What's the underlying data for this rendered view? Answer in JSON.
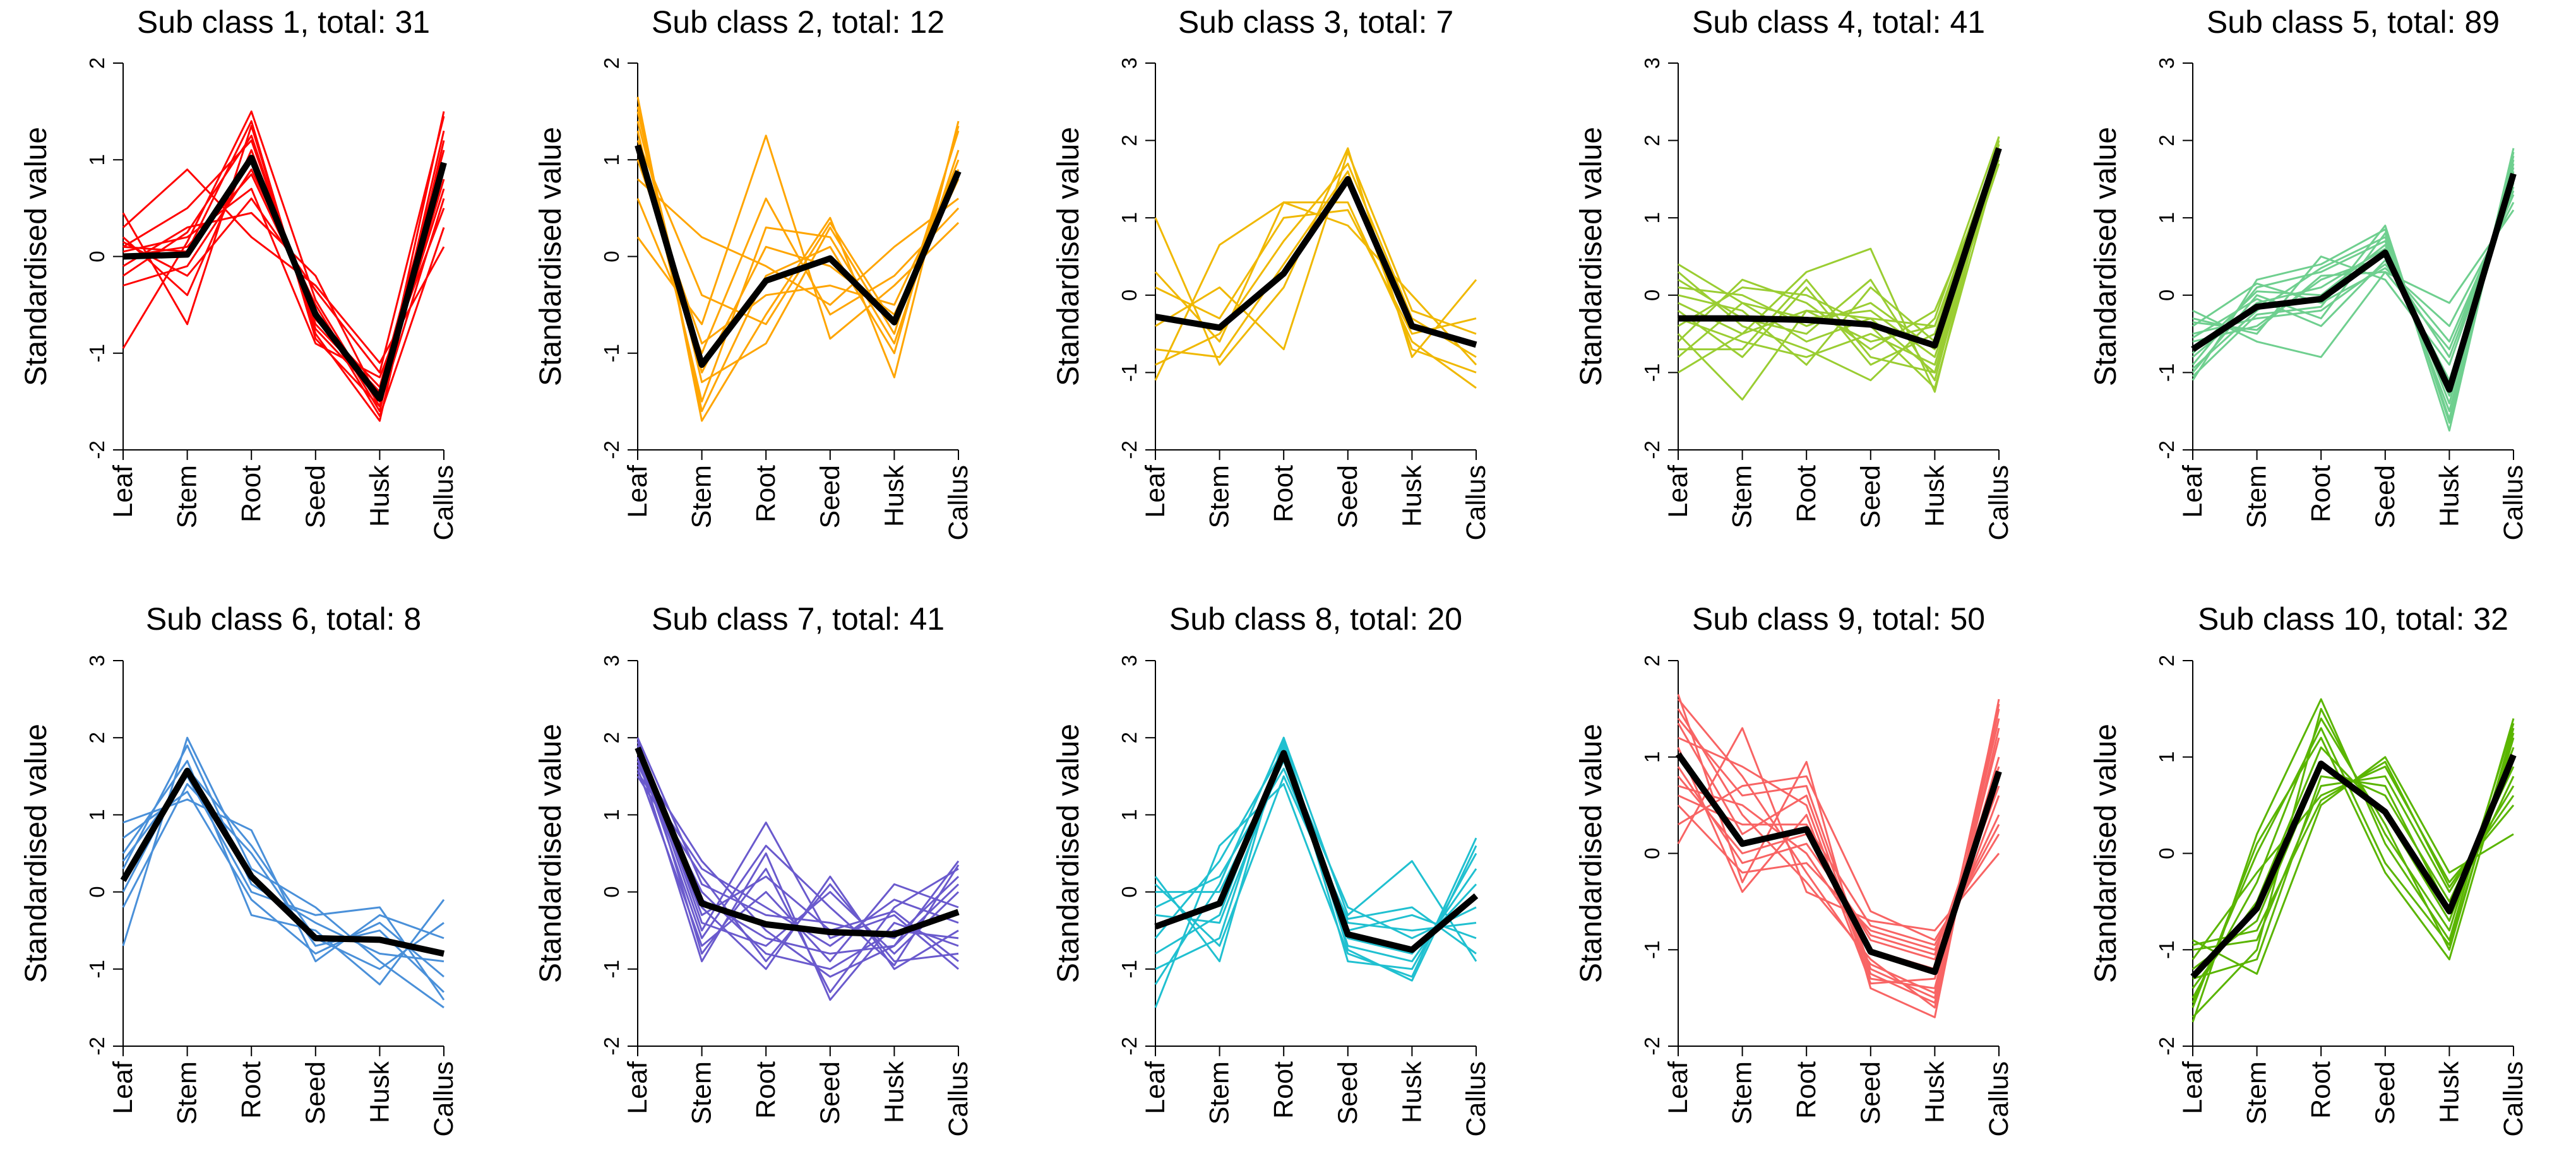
{
  "figure": {
    "y_label": "Standardised value",
    "categories": [
      "Leaf",
      "Stem",
      "Root",
      "Seed",
      "Husk",
      "Callus"
    ]
  },
  "chart_data": [
    {
      "type": "line",
      "title": "Sub class 1, total: 31",
      "color": "#ff0000",
      "ylim": [
        -2,
        2
      ],
      "ylabel": "Standardised value",
      "categories": [
        "Leaf",
        "Stem",
        "Root",
        "Seed",
        "Husk",
        "Callus"
      ],
      "mean": [
        0.0,
        0.02,
        1.02,
        -0.6,
        -1.47,
        0.97
      ],
      "series": [
        [
          -0.95,
          0.15,
          1.5,
          -0.45,
          -1.55,
          1.5
        ],
        [
          0.45,
          -0.7,
          1.35,
          -0.8,
          -1.7,
          1.2
        ],
        [
          0.3,
          0.9,
          0.2,
          -0.3,
          -1.1,
          0.1
        ],
        [
          0.1,
          0.5,
          1.2,
          -0.7,
          -1.4,
          0.7
        ],
        [
          -0.3,
          -0.1,
          0.9,
          -0.5,
          -1.6,
          1.3
        ],
        [
          0.05,
          0.2,
          0.7,
          -0.9,
          -1.25,
          0.5
        ],
        [
          -0.1,
          0.3,
          0.45,
          -0.2,
          -1.5,
          0.9
        ],
        [
          0.2,
          -0.4,
          1.1,
          -0.65,
          -1.35,
          1.1
        ],
        [
          0.0,
          0.1,
          0.85,
          -0.55,
          -1.65,
          0.3
        ],
        [
          -0.2,
          0.25,
          1.25,
          -0.75,
          -1.45,
          0.8
        ],
        [
          0.15,
          -0.2,
          0.6,
          -0.35,
          -1.2,
          1.45
        ],
        [
          0.1,
          0.05,
          1.4,
          -0.85,
          -1.55,
          0.6
        ]
      ]
    },
    {
      "type": "line",
      "title": "Sub class 2, total: 12",
      "color": "#ffa500",
      "ylim": [
        -2,
        2
      ],
      "ylabel": "Standardised value",
      "categories": [
        "Leaf",
        "Stem",
        "Root",
        "Seed",
        "Husk",
        "Callus"
      ],
      "mean": [
        1.15,
        -1.12,
        -0.25,
        -0.02,
        -0.68,
        0.88
      ],
      "series": [
        [
          1.65,
          -1.7,
          -0.6,
          0.4,
          -1.25,
          1.4
        ],
        [
          0.2,
          -0.7,
          1.25,
          -0.85,
          -0.3,
          0.35
        ],
        [
          1.5,
          -1.3,
          -0.9,
          0.3,
          -0.8,
          1.3
        ],
        [
          0.8,
          0.2,
          -0.1,
          -0.5,
          0.1,
          0.6
        ],
        [
          1.3,
          -1.5,
          0.3,
          0.2,
          -0.9,
          1.1
        ],
        [
          1.0,
          -0.9,
          -0.4,
          -0.3,
          -0.5,
          0.9
        ],
        [
          1.55,
          -1.6,
          -0.2,
          0.1,
          -1.0,
          1.35
        ],
        [
          0.6,
          -1.0,
          0.6,
          -0.6,
          -0.2,
          0.5
        ],
        [
          1.2,
          -0.4,
          -0.7,
          0.35,
          -0.7,
          1.0
        ],
        [
          1.4,
          -1.2,
          0.1,
          -0.1,
          -0.6,
          0.8
        ]
      ]
    },
    {
      "type": "line",
      "title": "Sub class 3, total: 7",
      "color": "#f0b800",
      "ylim": [
        -2,
        3
      ],
      "ylabel": "Standardised value",
      "categories": [
        "Leaf",
        "Stem",
        "Root",
        "Seed",
        "Husk",
        "Callus"
      ],
      "mean": [
        -0.28,
        -0.42,
        0.28,
        1.5,
        -0.4,
        -0.64
      ],
      "series": [
        [
          -1.1,
          0.65,
          1.2,
          1.2,
          -0.6,
          -1.2
        ],
        [
          1.0,
          -0.9,
          0.1,
          1.9,
          -0.8,
          0.2
        ],
        [
          0.3,
          -0.6,
          1.2,
          0.9,
          0.0,
          -0.9
        ],
        [
          -0.4,
          0.1,
          -0.7,
          1.85,
          -0.2,
          -0.5
        ],
        [
          -0.7,
          -0.8,
          0.4,
          1.6,
          -0.7,
          -1.0
        ],
        [
          0.1,
          -0.3,
          1.0,
          1.1,
          -0.5,
          -0.3
        ],
        [
          -0.9,
          -0.5,
          0.7,
          1.7,
          -0.3,
          -0.8
        ]
      ]
    },
    {
      "type": "line",
      "title": "Sub class 4, total: 41",
      "color": "#9acd32",
      "ylim": [
        -2,
        3
      ],
      "ylabel": "Standardised value",
      "categories": [
        "Leaf",
        "Stem",
        "Root",
        "Seed",
        "Husk",
        "Callus"
      ],
      "mean": [
        -0.3,
        -0.3,
        -0.32,
        -0.38,
        -0.65,
        1.9
      ],
      "series": [
        [
          0.4,
          -0.1,
          -0.6,
          -0.3,
          -1.0,
          2.0
        ],
        [
          -0.5,
          -1.35,
          -0.2,
          -0.6,
          -0.4,
          1.8
        ],
        [
          -1.0,
          -0.5,
          0.3,
          0.6,
          -1.25,
          2.05
        ],
        [
          0.1,
          0.0,
          -0.4,
          -0.1,
          -0.7,
          1.9
        ],
        [
          -0.3,
          -0.6,
          -0.8,
          -0.5,
          -0.9,
          1.85
        ],
        [
          -0.6,
          0.2,
          -0.1,
          -0.7,
          -0.2,
          1.75
        ],
        [
          0.2,
          -0.3,
          -0.5,
          0.2,
          -1.1,
          2.0
        ],
        [
          -0.2,
          -0.8,
          0.1,
          -0.9,
          -0.5,
          1.95
        ],
        [
          -0.8,
          -0.1,
          -0.3,
          -0.2,
          -0.8,
          1.7
        ],
        [
          0.3,
          -0.4,
          -0.7,
          -1.1,
          -0.3,
          2.05
        ],
        [
          -0.4,
          0.1,
          0.0,
          -0.4,
          -1.2,
          1.8
        ],
        [
          0.0,
          -0.2,
          -0.9,
          0.1,
          -0.6,
          1.9
        ],
        [
          -0.7,
          -0.7,
          0.2,
          -0.8,
          -1.0,
          1.85
        ],
        [
          -0.1,
          -0.5,
          -0.2,
          -0.3,
          -0.4,
          1.95
        ]
      ]
    },
    {
      "type": "line",
      "title": "Sub class 5, total: 89",
      "color": "#6fcf8f",
      "ylim": [
        -2,
        3
      ],
      "ylabel": "Standardised value",
      "categories": [
        "Leaf",
        "Stem",
        "Root",
        "Seed",
        "Husk",
        "Callus"
      ],
      "mean": [
        -0.7,
        -0.15,
        -0.05,
        0.55,
        -1.22,
        1.57
      ],
      "series": [
        [
          -1.1,
          0.2,
          0.4,
          0.85,
          -1.75,
          1.85
        ],
        [
          -0.2,
          -0.6,
          -0.8,
          0.3,
          -0.1,
          1.1
        ],
        [
          -0.9,
          0.1,
          0.3,
          0.7,
          -1.5,
          1.7
        ],
        [
          -0.5,
          -0.3,
          -0.2,
          0.4,
          -0.6,
          1.3
        ],
        [
          -0.8,
          -0.1,
          0.1,
          0.6,
          -1.3,
          1.6
        ],
        [
          -0.3,
          -0.5,
          0.5,
          0.2,
          -0.9,
          1.45
        ],
        [
          -1.0,
          0.0,
          -0.3,
          0.8,
          -1.6,
          1.8
        ],
        [
          -0.6,
          -0.4,
          0.2,
          0.5,
          -1.1,
          1.5
        ],
        [
          -0.4,
          0.15,
          -0.1,
          0.35,
          -0.4,
          1.2
        ],
        [
          -0.95,
          -0.2,
          0.35,
          0.75,
          -1.4,
          1.75
        ],
        [
          -0.55,
          -0.05,
          -0.4,
          0.45,
          -0.8,
          1.4
        ],
        [
          -0.75,
          0.05,
          0.0,
          0.65,
          -1.2,
          1.65
        ],
        [
          -0.35,
          -0.45,
          0.25,
          0.3,
          -0.7,
          1.35
        ],
        [
          -1.05,
          -0.25,
          -0.15,
          0.9,
          -1.65,
          1.9
        ]
      ]
    },
    {
      "type": "line",
      "title": "Sub class 6, total: 8",
      "color": "#4a90d9",
      "ylim": [
        -2,
        3
      ],
      "ylabel": "Standardised value",
      "categories": [
        "Leaf",
        "Stem",
        "Root",
        "Seed",
        "Husk",
        "Callus"
      ],
      "mean": [
        0.15,
        1.57,
        0.2,
        -0.6,
        -0.62,
        -0.8
      ],
      "series": [
        [
          -0.7,
          2.0,
          0.3,
          -0.2,
          -0.9,
          -1.5
        ],
        [
          0.9,
          1.2,
          0.8,
          -0.9,
          -0.3,
          -0.6
        ],
        [
          0.5,
          1.7,
          -0.3,
          -0.5,
          -1.2,
          -0.1
        ],
        [
          -0.2,
          1.4,
          0.5,
          -0.7,
          -0.5,
          -1.3
        ],
        [
          0.3,
          1.9,
          0.1,
          -0.4,
          -0.8,
          -0.9
        ],
        [
          0.7,
          1.3,
          -0.1,
          -0.8,
          -0.4,
          -1.1
        ],
        [
          0.0,
          1.6,
          0.6,
          -0.6,
          -1.0,
          -0.4
        ],
        [
          0.4,
          1.5,
          0.0,
          -0.3,
          -0.2,
          -1.4
        ]
      ]
    },
    {
      "type": "line",
      "title": "Sub class 7, total: 41",
      "color": "#6a5acd",
      "ylim": [
        -2,
        3
      ],
      "ylabel": "Standardised value",
      "categories": [
        "Leaf",
        "Stem",
        "Root",
        "Seed",
        "Husk",
        "Callus"
      ],
      "mean": [
        1.87,
        -0.15,
        -0.42,
        -0.52,
        -0.55,
        -0.26
      ],
      "series": [
        [
          2.0,
          -0.8,
          0.3,
          -1.3,
          -0.2,
          0.3
        ],
        [
          1.5,
          0.2,
          -0.9,
          0.1,
          -0.9,
          -0.8
        ],
        [
          1.9,
          -0.5,
          0.9,
          -0.6,
          -0.3,
          -1.0
        ],
        [
          1.7,
          0.4,
          -0.5,
          -1.1,
          -0.7,
          0.4
        ],
        [
          1.85,
          -0.2,
          -1.0,
          0.2,
          -1.0,
          -0.5
        ],
        [
          1.6,
          -0.7,
          0.0,
          -0.9,
          0.1,
          -0.2
        ],
        [
          2.0,
          0.1,
          -0.3,
          -0.4,
          -0.6,
          0.2
        ],
        [
          1.75,
          -0.9,
          0.5,
          -1.4,
          -0.4,
          -0.7
        ],
        [
          1.95,
          -0.4,
          -0.7,
          0.0,
          -0.8,
          0.0
        ],
        [
          1.55,
          0.3,
          -0.2,
          -0.7,
          -0.1,
          -0.4
        ],
        [
          1.8,
          -0.6,
          0.6,
          -0.2,
          -0.95,
          0.35
        ],
        [
          1.65,
          0.0,
          -0.8,
          -1.0,
          -0.5,
          -0.6
        ],
        [
          1.9,
          -0.3,
          0.2,
          -0.5,
          -0.25,
          -0.9
        ],
        [
          1.7,
          -0.1,
          -0.6,
          -0.8,
          -0.7,
          0.1
        ]
      ]
    },
    {
      "type": "line",
      "title": "Sub class 8, total: 20",
      "color": "#20c0d0",
      "ylim": [
        -2,
        3
      ],
      "ylabel": "Standardised value",
      "categories": [
        "Leaf",
        "Stem",
        "Root",
        "Seed",
        "Husk",
        "Callus"
      ],
      "mean": [
        -0.45,
        -0.15,
        1.8,
        -0.55,
        -0.75,
        -0.05
      ],
      "series": [
        [
          -1.5,
          0.6,
          1.4,
          -0.8,
          -1.1,
          0.7
        ],
        [
          0.2,
          -0.9,
          2.0,
          -0.3,
          0.4,
          -0.9
        ],
        [
          -0.8,
          -0.3,
          1.9,
          -0.7,
          -0.9,
          0.3
        ],
        [
          -0.2,
          0.2,
          1.6,
          -0.4,
          -0.5,
          -0.4
        ],
        [
          -1.0,
          -0.6,
          1.95,
          -0.9,
          -1.0,
          0.5
        ],
        [
          0.0,
          0.0,
          1.7,
          -0.5,
          -0.3,
          -0.6
        ],
        [
          -0.6,
          0.4,
          1.85,
          -0.6,
          -0.8,
          0.1
        ],
        [
          -0.3,
          -0.4,
          1.75,
          -0.2,
          -0.6,
          -0.2
        ],
        [
          -1.2,
          0.1,
          2.0,
          -0.75,
          -1.15,
          0.6
        ],
        [
          0.1,
          -0.7,
          1.5,
          -0.35,
          -0.2,
          -0.8
        ]
      ]
    },
    {
      "type": "line",
      "title": "Sub class 9, total: 50",
      "color": "#f86464",
      "ylim": [
        -2,
        2
      ],
      "ylabel": "Standardised value",
      "categories": [
        "Leaf",
        "Stem",
        "Root",
        "Seed",
        "Husk",
        "Callus"
      ],
      "mean": [
        1.03,
        0.1,
        0.25,
        -1.02,
        -1.23,
        0.85
      ],
      "series": [
        [
          1.65,
          -0.3,
          0.95,
          -1.4,
          -1.7,
          1.6
        ],
        [
          0.1,
          1.3,
          -0.4,
          -0.7,
          -0.8,
          0.0
        ],
        [
          1.4,
          0.6,
          0.7,
          -1.2,
          -1.5,
          1.4
        ],
        [
          0.5,
          -0.2,
          -0.1,
          -0.8,
          -1.0,
          0.4
        ],
        [
          1.2,
          0.9,
          0.5,
          -1.3,
          -1.4,
          1.2
        ],
        [
          0.8,
          0.0,
          0.2,
          -0.9,
          -1.1,
          0.7
        ],
        [
          1.5,
          0.4,
          -0.3,
          -1.1,
          -1.6,
          1.5
        ],
        [
          0.3,
          0.7,
          0.8,
          -0.6,
          -0.9,
          0.2
        ],
        [
          1.1,
          -0.4,
          0.4,
          -1.35,
          -1.3,
          1.0
        ],
        [
          0.7,
          0.5,
          0.0,
          -1.0,
          -1.2,
          0.6
        ],
        [
          1.35,
          0.2,
          0.6,
          -1.25,
          -1.55,
          1.3
        ],
        [
          0.9,
          -0.1,
          0.1,
          -0.85,
          -1.05,
          0.9
        ],
        [
          1.6,
          0.8,
          -0.2,
          -1.15,
          -1.45,
          1.55
        ],
        [
          0.6,
          0.3,
          0.3,
          -0.75,
          -0.95,
          0.3
        ]
      ]
    },
    {
      "type": "line",
      "title": "Sub class 10, total: 32",
      "color": "#5ab500",
      "ylim": [
        -2,
        2
      ],
      "ylabel": "Standardised value",
      "categories": [
        "Leaf",
        "Stem",
        "Root",
        "Seed",
        "Husk",
        "Callus"
      ],
      "mean": [
        -1.28,
        -0.57,
        0.93,
        0.43,
        -0.6,
        1.02
      ],
      "series": [
        [
          -1.75,
          0.2,
          1.6,
          0.1,
          -0.9,
          1.4
        ],
        [
          -0.9,
          -1.25,
          0.5,
          1.0,
          -0.2,
          0.2
        ],
        [
          -1.5,
          -0.3,
          1.4,
          0.3,
          -1.0,
          1.3
        ],
        [
          -1.0,
          -0.9,
          0.7,
          0.8,
          -0.4,
          0.7
        ],
        [
          -1.6,
          0.1,
          1.2,
          -0.2,
          -1.1,
          1.2
        ],
        [
          -1.2,
          -0.7,
          0.9,
          0.6,
          -0.5,
          0.9
        ],
        [
          -1.7,
          -1.0,
          1.5,
          0.2,
          -0.8,
          1.35
        ],
        [
          -1.1,
          -0.2,
          0.6,
          0.9,
          -0.3,
          0.5
        ],
        [
          -1.4,
          -0.5,
          1.1,
          0.4,
          -0.7,
          1.1
        ],
        [
          -1.3,
          -1.1,
          0.8,
          0.7,
          -0.6,
          0.8
        ],
        [
          -1.55,
          0.0,
          1.3,
          -0.1,
          -0.95,
          1.25
        ],
        [
          -0.95,
          -0.8,
          0.55,
          0.95,
          -0.35,
          0.6
        ]
      ]
    }
  ]
}
